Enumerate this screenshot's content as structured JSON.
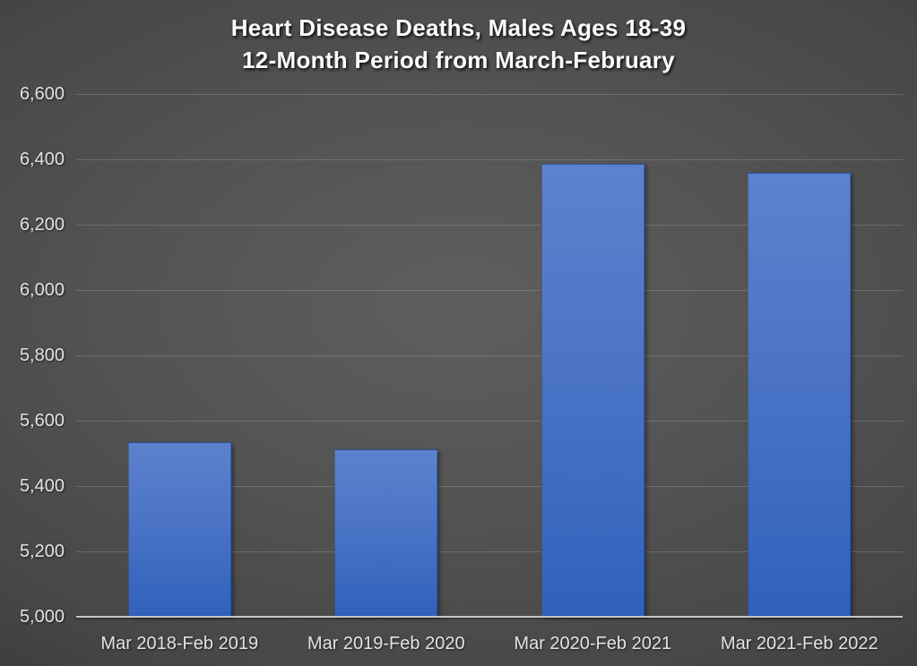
{
  "title": {
    "line1": "Heart Disease Deaths, Males Ages 18-39",
    "line2": "12-Month Period from March-February"
  },
  "chart_data": {
    "type": "bar",
    "title": "Heart Disease Deaths, Males Ages 18-39 — 12-Month Period from March-February",
    "categories": [
      "Mar 2018-Feb 2019",
      "Mar 2019-Feb 2020",
      "Mar 2020-Feb 2021",
      "Mar 2021-Feb 2022"
    ],
    "values": [
      5534,
      5512,
      6386,
      6359
    ],
    "xlabel": "",
    "ylabel": "",
    "ylim": [
      5000,
      6600
    ],
    "ytick_step": 200,
    "ytick_labels": [
      "5,000",
      "5,200",
      "5,400",
      "5,600",
      "5,800",
      "6,000",
      "6,200",
      "6,400",
      "6,600"
    ],
    "grid": true,
    "legend": false,
    "colors": {
      "bar_gradient_top": "#5d82cd",
      "bar_gradient_bottom": "#3061bb",
      "background_center": "#5a5a5a",
      "background_corner": "#262626",
      "gridline": "rgba(255,255,255,0.17)",
      "axis_line": "#c6c6c6",
      "tick_text": "#e2e2e2",
      "title_text": "#fbfbfb"
    }
  }
}
